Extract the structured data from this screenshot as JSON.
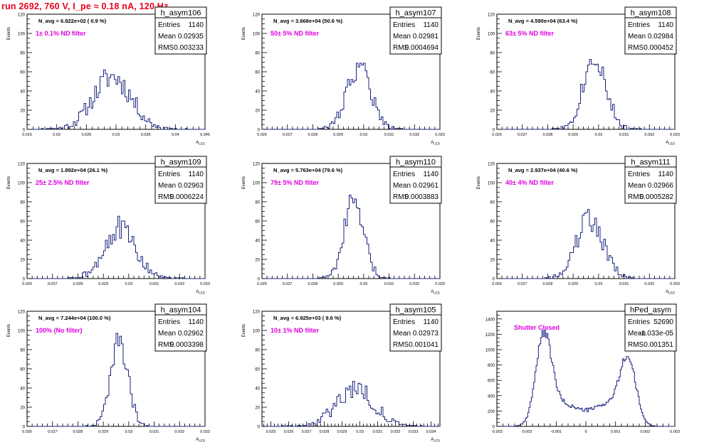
{
  "title": "run 2692,   760 V, I_pe ≈ 0.18 nA, 120 Hz",
  "colors": {
    "title": "#e8001c",
    "hist": "#1a237e",
    "annotation": "#e000e0",
    "axis": "#000000"
  },
  "chart_data": [
    {
      "type": "bar",
      "name": "h_asym106",
      "title": "h_asym106",
      "ylabel": "Events",
      "xlabel": "A_{LED}",
      "navg": "N_avg = 6.822e+02 ( 0.9 %)",
      "note": "1± 0.1% ND filter",
      "stats": {
        "entries": "1140",
        "mean": "0.02935",
        "rms": "0.003233"
      },
      "xlim": [
        0.015,
        0.045
      ],
      "ylim": [
        0,
        120
      ],
      "xticks": [
        0.015,
        0.02,
        0.025,
        0.03,
        0.035,
        0.04,
        0.045
      ],
      "xticklabels": [
        "0.015",
        "0.02",
        "0.025",
        "0.03",
        "0.035",
        "0.04",
        "0.045"
      ],
      "yticks": [
        0,
        20,
        40,
        60,
        80,
        100,
        120
      ],
      "bin_width": 0.0003,
      "peaks": [
        {
          "mu": 0.02935,
          "sigma": 0.0032,
          "amp": 55
        }
      ],
      "noise": 10,
      "seed": 11
    },
    {
      "type": "bar",
      "name": "h_asym107",
      "title": "h_asym107",
      "ylabel": "Events",
      "xlabel": "A_{LED}",
      "navg": "N_avg = 3.668e+04 (50.6 %)",
      "note": "50± 5% ND filter",
      "stats": {
        "entries": "1140",
        "mean": "0.02981",
        "rms": "0.0004694"
      },
      "xlim": [
        0.026,
        0.033
      ],
      "ylim": [
        0,
        120
      ],
      "xticks": [
        0.026,
        0.027,
        0.028,
        0.029,
        0.03,
        0.031,
        0.032,
        0.033
      ],
      "xticklabels": [
        "0.026",
        "0.027",
        "0.028",
        "0.029",
        "0.03",
        "0.031",
        "0.032",
        "0.033"
      ],
      "yticks": [
        0,
        20,
        40,
        60,
        80,
        100,
        120
      ],
      "bin_width": 7e-05,
      "peaks": [
        {
          "mu": 0.02981,
          "sigma": 0.00047,
          "amp": 66
        }
      ],
      "noise": 10,
      "seed": 22
    },
    {
      "type": "bar",
      "name": "h_asym108",
      "title": "h_asym108",
      "ylabel": "Events",
      "xlabel": "A_{LED}",
      "navg": "N_avg = 4.590e+04 (63.4 %)",
      "note": "63± 5% ND filter",
      "stats": {
        "entries": "1140",
        "mean": "0.02984",
        "rms": "0.000452"
      },
      "xlim": [
        0.026,
        0.033
      ],
      "ylim": [
        0,
        120
      ],
      "xticks": [
        0.026,
        0.027,
        0.028,
        0.029,
        0.03,
        0.031,
        0.032,
        0.033
      ],
      "xticklabels": [
        "0.026",
        "0.027",
        "0.028",
        "0.029",
        "0.03",
        "0.031",
        "0.032",
        "0.033"
      ],
      "yticks": [
        0,
        20,
        40,
        60,
        80,
        100,
        120
      ],
      "bin_width": 7e-05,
      "peaks": [
        {
          "mu": 0.02984,
          "sigma": 0.00045,
          "amp": 76
        }
      ],
      "noise": 10,
      "seed": 33
    },
    {
      "type": "bar",
      "name": "h_asym109",
      "title": "h_asym109",
      "ylabel": "Events",
      "xlabel": "A_{LED}",
      "navg": "N_avg = 1.892e+04 (26.1 %)",
      "note": "25± 2.5% ND filter",
      "stats": {
        "entries": "1140",
        "mean": "0.02963",
        "rms": "0.0006224"
      },
      "xlim": [
        0.026,
        0.033
      ],
      "ylim": [
        0,
        120
      ],
      "xticks": [
        0.026,
        0.027,
        0.028,
        0.029,
        0.03,
        0.031,
        0.032,
        0.033
      ],
      "xticklabels": [
        "0.026",
        "0.027",
        "0.028",
        "0.029",
        "0.03",
        "0.031",
        "0.032",
        "0.033"
      ],
      "yticks": [
        0,
        20,
        40,
        60,
        80,
        100,
        120
      ],
      "bin_width": 7e-05,
      "peaks": [
        {
          "mu": 0.02963,
          "sigma": 0.00062,
          "amp": 52
        }
      ],
      "noise": 10,
      "seed": 44
    },
    {
      "type": "bar",
      "name": "h_asym110",
      "title": "h_asym110",
      "ylabel": "Events",
      "xlabel": "A_{LED}",
      "navg": "N_avg = 5.763e+04 (79.6 %)",
      "note": "79± 5% ND filter",
      "stats": {
        "entries": "1140",
        "mean": "0.02961",
        "rms": "0.0003883"
      },
      "xlim": [
        0.026,
        0.033
      ],
      "ylim": [
        0,
        120
      ],
      "xticks": [
        0.026,
        0.027,
        0.028,
        0.029,
        0.03,
        0.031,
        0.032,
        0.033
      ],
      "xticklabels": [
        "0.026",
        "0.027",
        "0.028",
        "0.029",
        "0.03",
        "0.031",
        "0.032",
        "0.033"
      ],
      "yticks": [
        0,
        20,
        40,
        60,
        80,
        100,
        120
      ],
      "bin_width": 7e-05,
      "peaks": [
        {
          "mu": 0.02961,
          "sigma": 0.00039,
          "amp": 80
        }
      ],
      "noise": 10,
      "seed": 55
    },
    {
      "type": "bar",
      "name": "h_asym111",
      "title": "h_asym111",
      "ylabel": "Events",
      "xlabel": "A_{LED}",
      "navg": "N_avg = 2.937e+04 (40.6 %)",
      "note": "40± 4% ND filter",
      "stats": {
        "entries": "1140",
        "mean": "0.02966",
        "rms": "0.0005282"
      },
      "xlim": [
        0.026,
        0.033
      ],
      "ylim": [
        0,
        120
      ],
      "xticks": [
        0.026,
        0.027,
        0.028,
        0.029,
        0.03,
        0.031,
        0.032,
        0.033
      ],
      "xticklabels": [
        "0.026",
        "0.027",
        "0.028",
        "0.029",
        "0.03",
        "0.031",
        "0.032",
        "0.033"
      ],
      "yticks": [
        0,
        20,
        40,
        60,
        80,
        100,
        120
      ],
      "bin_width": 7e-05,
      "peaks": [
        {
          "mu": 0.02966,
          "sigma": 0.00053,
          "amp": 62
        }
      ],
      "noise": 10,
      "seed": 66
    },
    {
      "type": "bar",
      "name": "h_asym104",
      "title": "h_asym104",
      "ylabel": "Events",
      "xlabel": "A_{LED}",
      "navg": "N_avg = 7.244e+04 (100.0 %)",
      "note": "100% (No filter)",
      "stats": {
        "entries": "1140",
        "mean": "0.02962",
        "rms": "0.0003398"
      },
      "xlim": [
        0.026,
        0.033
      ],
      "ylim": [
        0,
        120
      ],
      "xticks": [
        0.026,
        0.027,
        0.028,
        0.029,
        0.03,
        0.031,
        0.032,
        0.033
      ],
      "xticklabels": [
        "0.026",
        "0.027",
        "0.028",
        "0.029",
        "0.03",
        "0.031",
        "0.032",
        "0.033"
      ],
      "yticks": [
        0,
        20,
        40,
        60,
        80,
        100,
        120
      ],
      "bin_width": 7e-05,
      "peaks": [
        {
          "mu": 0.02962,
          "sigma": 0.00034,
          "amp": 88
        }
      ],
      "noise": 10,
      "seed": 77
    },
    {
      "type": "bar",
      "name": "h_asym105",
      "title": "h_asym105",
      "ylabel": "Events",
      "xlabel": "A_{LED}",
      "navg": "N_avg = 6.925e+03 ( 9.6 %)",
      "note": "10± 1% ND filter",
      "stats": {
        "entries": "1140",
        "mean": "0.02973",
        "rms": "0.001041"
      },
      "xlim": [
        0.0245,
        0.0345
      ],
      "ylim": [
        0,
        120
      ],
      "xticks": [
        0.025,
        0.026,
        0.027,
        0.028,
        0.029,
        0.03,
        0.031,
        0.032,
        0.033,
        0.034
      ],
      "xticklabels": [
        "0.025",
        "0.026",
        "0.027",
        "0.028",
        "0.029",
        "0.03",
        "0.031",
        "0.032",
        "0.033",
        "0.034"
      ],
      "yticks": [
        0,
        20,
        40,
        60,
        80,
        100,
        120
      ],
      "bin_width": 0.0001,
      "peaks": [
        {
          "mu": 0.02973,
          "sigma": 0.00104,
          "amp": 40
        }
      ],
      "noise": 8,
      "seed": 88
    },
    {
      "type": "bar",
      "name": "hPed_asym",
      "title": "hPed_asym",
      "ylabel": "",
      "xlabel": "",
      "navg": "",
      "note": "Shutter Closed",
      "stats": {
        "entries": "52690",
        "mean": "-1.033e-05",
        "rms": "0.001351"
      },
      "xlim": [
        -0.003,
        0.003
      ],
      "ylim": [
        0,
        1500
      ],
      "xticks": [
        -0.003,
        -0.002,
        -0.001,
        0,
        0.001,
        0.002,
        0.003
      ],
      "xticklabels": [
        "-0.003",
        "-0.002",
        "-0.001",
        "0",
        "0.001",
        "0.002",
        "0.003"
      ],
      "yticks": [
        0,
        200,
        400,
        600,
        800,
        1000,
        1200,
        1400
      ],
      "bin_width": 4e-05,
      "peaks": [
        {
          "mu": -0.00142,
          "sigma": 0.00027,
          "amp": 1130
        },
        {
          "mu": 0.00142,
          "sigma": 0.00027,
          "amp": 820
        },
        {
          "mu": -0.0008,
          "sigma": 0.00045,
          "amp": 220
        },
        {
          "mu": 0.0008,
          "sigma": 0.00045,
          "amp": 230
        },
        {
          "mu": 0.0,
          "sigma": 0.0006,
          "amp": 120
        }
      ],
      "noise": 45,
      "seed": 99
    }
  ]
}
